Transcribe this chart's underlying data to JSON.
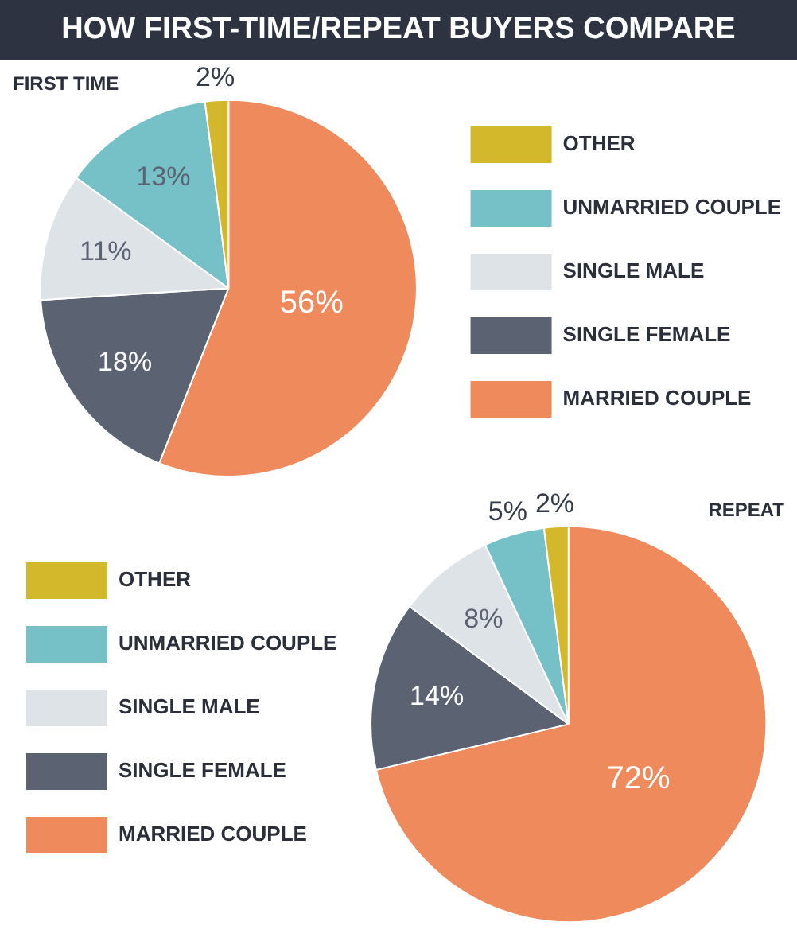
{
  "chart_data": [
    {
      "type": "pie",
      "title": "HOW FIRST-TIME/REPEAT BUYERS COMPARE",
      "subtitle": "FIRST TIME",
      "categories": [
        "MARRIED COUPLE",
        "SINGLE FEMALE",
        "SINGLE MALE",
        "UNMARRIED COUPLE",
        "OTHER"
      ],
      "values": [
        56,
        18,
        11,
        13,
        2
      ],
      "value_labels": [
        "56%",
        "18%",
        "11%",
        "13%",
        "2%"
      ],
      "colors": [
        "#ef8a5d",
        "#5b6373",
        "#dde3e7",
        "#76c0c7",
        "#d4b82b"
      ],
      "legend": "right"
    },
    {
      "type": "pie",
      "subtitle": "REPEAT",
      "categories": [
        "MARRIED COUPLE",
        "SINGLE FEMALE",
        "SINGLE MALE",
        "UNMARRIED COUPLE",
        "OTHER"
      ],
      "values": [
        72,
        14,
        8,
        5,
        2
      ],
      "value_labels": [
        "72%",
        "14%",
        "8%",
        "5%",
        "2%"
      ],
      "colors": [
        "#ef8a5d",
        "#5b6373",
        "#dde3e7",
        "#76c0c7",
        "#d4b82b"
      ],
      "legend": "left"
    }
  ]
}
